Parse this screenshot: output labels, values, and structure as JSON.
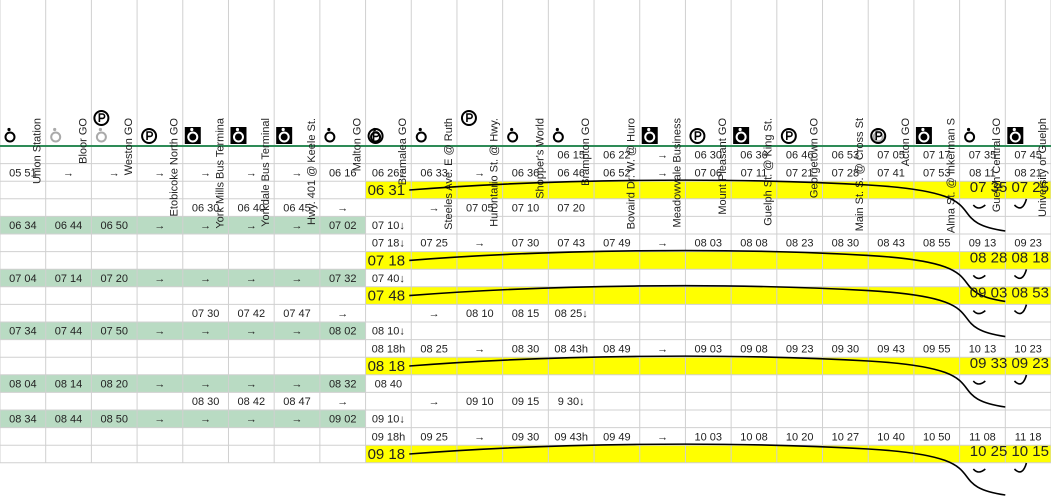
{
  "header": {
    "stations": [
      "Union Station",
      "Bloor GO",
      "Weston GO",
      "Etobicoke North GO",
      "York Mills Bus Termina",
      "Yorkdale Bus Terminal",
      "Hwy. 401 @ Keele St.",
      "Malton GO",
      "Bramalea GO",
      "Steeles Ave. E @ Ruth",
      "Hurontario St. @ Hwy.",
      "Shopper's World",
      "Brampton GO",
      "Bovaird Dr. W. @ Huro",
      "Meadowvale Business",
      "Mount Pleasant GO",
      "Guelph St. @ King St.",
      "Georgetown GO",
      "Main St. S. @ Cross St",
      "Acton GO",
      "Alma St. @ Inkerman S",
      "Guelph Central GO",
      "University of Guelph"
    ]
  },
  "rows": [
    {
      "style": "plain",
      "cells": [
        null,
        null,
        null,
        null,
        null,
        null,
        null,
        null,
        null,
        null,
        null,
        null,
        "06 15",
        "06 22",
        "→",
        "06 30",
        "06 36",
        "06 46",
        "06 53",
        "07 05",
        "07 17",
        "07 35",
        "07 45"
      ]
    },
    {
      "style": "plain",
      "cells": [
        "05 51",
        "→",
        "→",
        "→",
        "→",
        "→",
        "→",
        "06 16",
        "06 26↓",
        "06 33",
        "→",
        "06 36",
        "06 46",
        "06 52",
        "→",
        "07 06",
        "07 11",
        "07 21",
        "07 28",
        "07 41",
        "07 53",
        "08 11",
        "08 21"
      ]
    },
    {
      "style": "yellow",
      "cells": [
        null,
        null,
        null,
        null,
        null,
        null,
        null,
        null,
        "06 31",
        null,
        null,
        null,
        null,
        null,
        null,
        null,
        null,
        null,
        null,
        null,
        null,
        null,
        null
      ],
      "note": "07 35 07 25"
    },
    {
      "style": "plain",
      "cells": [
        null,
        null,
        null,
        null,
        "06 30",
        "06 40",
        "06 45",
        "→",
        null,
        "→",
        "07 05",
        "07 10",
        "07 20",
        null,
        null,
        null,
        null,
        null,
        null,
        null,
        null,
        null,
        null
      ]
    },
    {
      "style": "green",
      "cells": [
        "06 34",
        "06 44",
        "06 50",
        "→",
        "→",
        "→",
        "→",
        "07 02",
        "07 10↓",
        null,
        null,
        null,
        null,
        null,
        null,
        null,
        null,
        null,
        null,
        null,
        null,
        null,
        null
      ]
    },
    {
      "style": "plain",
      "cells": [
        null,
        null,
        null,
        null,
        null,
        null,
        null,
        null,
        "07 18↓",
        "07 25",
        "→",
        "07 30",
        "07 43",
        "07 49",
        "→",
        "08 03",
        "08 08",
        "08 23",
        "08 30",
        "08 43",
        "08 55",
        "09 13",
        "09 23"
      ]
    },
    {
      "style": "yellow",
      "cells": [
        null,
        null,
        null,
        null,
        null,
        null,
        null,
        null,
        "07 18",
        null,
        null,
        null,
        null,
        null,
        null,
        null,
        null,
        null,
        null,
        null,
        null,
        null,
        null
      ],
      "note": "08 28 08 18"
    },
    {
      "style": "green",
      "cells": [
        "07 04",
        "07 14",
        "07 20",
        "→",
        "→",
        "→",
        "→",
        "07 32",
        "07 40↓",
        null,
        null,
        null,
        null,
        null,
        null,
        null,
        null,
        null,
        null,
        null,
        null,
        null,
        null
      ]
    },
    {
      "style": "yellow",
      "cells": [
        null,
        null,
        null,
        null,
        null,
        null,
        null,
        null,
        "07 48",
        null,
        null,
        null,
        null,
        null,
        null,
        null,
        null,
        null,
        null,
        null,
        null,
        null,
        null
      ],
      "note": "09 03  08 53"
    },
    {
      "style": "plain",
      "cells": [
        null,
        null,
        null,
        null,
        "07 30",
        "07 42",
        "07 47",
        "→",
        null,
        "→",
        "08 10",
        "08 15",
        "08 25↓",
        null,
        null,
        null,
        null,
        null,
        null,
        null,
        null,
        null,
        null
      ]
    },
    {
      "style": "green",
      "cells": [
        "07 34",
        "07 44",
        "07 50",
        "→",
        "→",
        "→",
        "→",
        "08 02",
        "08 10↓",
        null,
        null,
        null,
        null,
        null,
        null,
        null,
        null,
        null,
        null,
        null,
        null,
        null,
        null
      ]
    },
    {
      "style": "plain",
      "cells": [
        null,
        null,
        null,
        null,
        null,
        null,
        null,
        null,
        "08 18h",
        "08 25",
        "→",
        "08 30",
        "08 43h",
        "08 49",
        "→",
        "09 03",
        "09 08",
        "09 23",
        "09 30",
        "09 43",
        "09 55",
        "10 13",
        "10 23"
      ]
    },
    {
      "style": "yellow",
      "cells": [
        null,
        null,
        null,
        null,
        null,
        null,
        null,
        null,
        "08 18",
        null,
        null,
        null,
        null,
        null,
        null,
        null,
        null,
        null,
        null,
        null,
        null,
        null,
        null
      ],
      "note": "09 33 09 23"
    },
    {
      "style": "green",
      "cells": [
        "08 04",
        "08 14",
        "08 20",
        "→",
        "→",
        "→",
        "→",
        "08 32",
        "08 40",
        null,
        null,
        null,
        null,
        null,
        null,
        null,
        null,
        null,
        null,
        null,
        null,
        null,
        null
      ]
    },
    {
      "style": "plain",
      "cells": [
        null,
        null,
        null,
        null,
        "08 30",
        "08 42",
        "08 47",
        "→",
        null,
        "→",
        "09 10",
        "09 15",
        "9 30↓",
        null,
        null,
        null,
        null,
        null,
        null,
        null,
        null,
        null,
        null
      ]
    },
    {
      "style": "green",
      "cells": [
        "08 34",
        "08 44",
        "08 50",
        "→",
        "→",
        "→",
        "→",
        "09 02",
        "09 10↓",
        null,
        null,
        null,
        null,
        null,
        null,
        null,
        null,
        null,
        null,
        null,
        null,
        null,
        null
      ]
    },
    {
      "style": "plain",
      "cells": [
        null,
        null,
        null,
        null,
        null,
        null,
        null,
        null,
        "09 18h",
        "09 25",
        "→",
        "09 30",
        "09 43h",
        "09 49",
        "→",
        "10 03",
        "10 08",
        "10 20",
        "10 27",
        "10 40",
        "10 50",
        "11 08",
        "11 18"
      ]
    },
    {
      "style": "yellow",
      "cells": [
        null,
        null,
        null,
        null,
        null,
        null,
        null,
        null,
        "09 18",
        null,
        null,
        null,
        null,
        null,
        null,
        null,
        null,
        null,
        null,
        null,
        null,
        null,
        null
      ],
      "note": "10 25 10 15"
    }
  ]
}
